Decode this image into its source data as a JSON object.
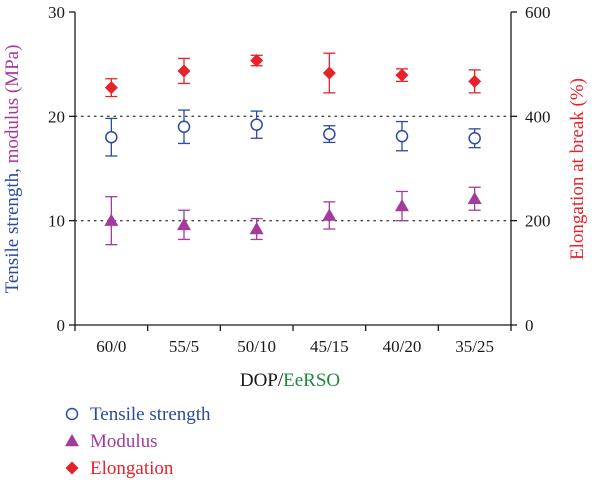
{
  "chart_data": {
    "type": "scatter",
    "categories": [
      "60/0",
      "55/5",
      "50/10",
      "45/15",
      "40/20",
      "35/25"
    ],
    "xlabel": {
      "part1": "DOP/",
      "part2": "EeRSO"
    },
    "ylabel_left": {
      "part1": "Tensile strength, ",
      "part2": "modulus (MPa)"
    },
    "ylabel_right": "Elongation at break (%)",
    "ylim_left": [
      0,
      30
    ],
    "ylim_right": [
      0,
      600
    ],
    "yticks_left": [
      "0",
      "10",
      "20",
      "30"
    ],
    "yticks_right": [
      "0",
      "200",
      "400",
      "600"
    ],
    "dotted_gridlines_left": [
      10,
      20
    ],
    "series": [
      {
        "name": "Tensile strength",
        "axis": "left",
        "marker": "circle",
        "values": [
          18.0,
          19.0,
          19.2,
          18.3,
          18.1,
          17.9
        ],
        "errors": [
          1.8,
          1.6,
          1.3,
          0.8,
          1.4,
          0.9
        ]
      },
      {
        "name": "Modulus",
        "axis": "left",
        "marker": "triangle",
        "values": [
          10.0,
          9.6,
          9.2,
          10.5,
          11.4,
          12.1
        ],
        "errors": [
          2.3,
          1.4,
          1.0,
          1.3,
          1.4,
          1.1
        ]
      },
      {
        "name": "Elongation",
        "axis": "right",
        "marker": "diamond",
        "values": [
          455,
          487,
          507,
          483,
          479,
          467
        ],
        "errors": [
          17,
          24,
          10,
          38,
          12,
          22
        ]
      }
    ],
    "legend_position": "bottom-left"
  },
  "colors": {
    "tensile": "#2b4aa0",
    "modulus": "#a43a9c",
    "elongation": "#e8222a",
    "eersO_label": "#1e8a3c",
    "axis": "#1a1a1a"
  }
}
